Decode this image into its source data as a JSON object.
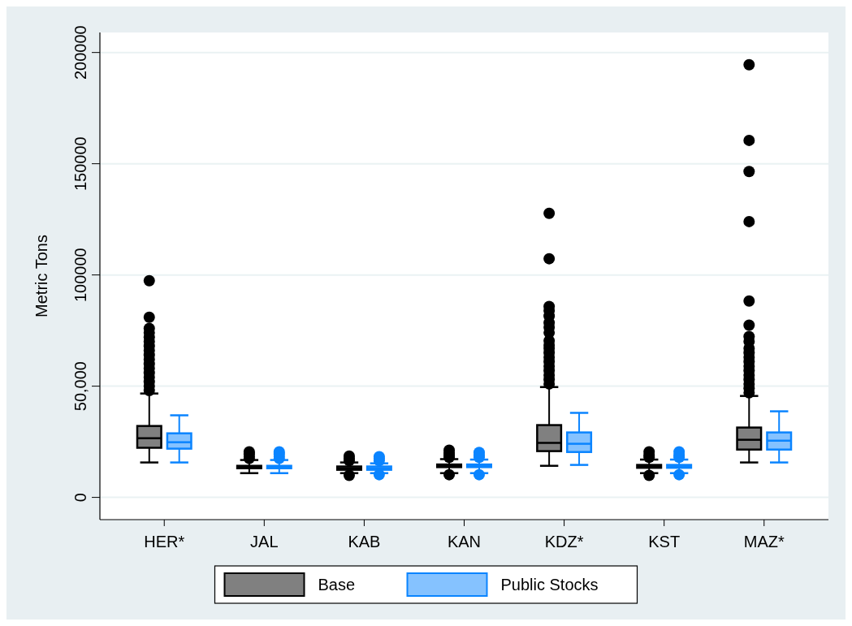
{
  "chart_data": {
    "type": "box",
    "ylabel": "Metric Tons",
    "categories": [
      "HER*",
      "JAL",
      "KAB",
      "KAN",
      "KDZ*",
      "KST",
      "MAZ*"
    ],
    "ylim": [
      -10000,
      209000
    ],
    "yticks": [
      0,
      {
        "value": 50000,
        "label": "50,000"
      },
      100000,
      150000,
      200000
    ],
    "grid": "y",
    "legend": "bottom",
    "series": [
      {
        "name": "Base",
        "color": "#000000",
        "boxes": [
          {
            "low": 15700,
            "q1": 22300,
            "median": 26600,
            "q3": 32100,
            "high": 46700,
            "outliers": [
              48000,
              50000,
              52000,
              54000,
              56000,
              58000,
              60000,
              62000,
              64000,
              66000,
              68000,
              70000,
              72000,
              74000,
              76000,
              81000,
              97400
            ]
          },
          {
            "low": 10900,
            "q1": 13100,
            "median": 13700,
            "q3": 14200,
            "high": 16800,
            "outliers": [
              17500,
              18500,
              19500,
              20500
            ]
          },
          {
            "low": 10900,
            "q1": 12400,
            "median": 13100,
            "q3": 13900,
            "high": 15700,
            "outliers": [
              9900,
              16500,
              17500,
              18600
            ]
          },
          {
            "low": 10900,
            "q1": 13600,
            "median": 14200,
            "q3": 14800,
            "high": 17200,
            "outliers": [
              10200,
              18000,
              19000,
              20000,
              21200
            ]
          },
          {
            "low": 14200,
            "q1": 20800,
            "median": 24500,
            "q3": 32500,
            "high": 49600,
            "outliers": [
              51000,
              53000,
              55000,
              57000,
              59000,
              61000,
              63000,
              65000,
              67000,
              68500,
              70400,
              74000,
              76500,
              78500,
              81500,
              83900,
              85800,
              107300,
              127700
            ]
          },
          {
            "low": 10900,
            "q1": 13300,
            "median": 13900,
            "q3": 14600,
            "high": 17000,
            "outliers": [
              9900,
              18000,
              19000,
              20500
            ]
          },
          {
            "low": 15700,
            "q1": 21500,
            "median": 25900,
            "q3": 31400,
            "high": 45600,
            "outliers": [
              47000,
              49000,
              51000,
              53000,
              55000,
              57000,
              59000,
              61000,
              63000,
              65000,
              67000,
              70000,
              72300,
              77400,
              88300,
              124000,
              146500,
              160500,
              194500
            ]
          }
        ]
      },
      {
        "name": "Public Stocks",
        "color": "#0a84ff",
        "boxes": [
          {
            "low": 15700,
            "q1": 21900,
            "median": 24800,
            "q3": 28800,
            "high": 36900
          },
          {
            "low": 10900,
            "q1": 13100,
            "median": 13700,
            "q3": 14200,
            "high": 16800,
            "outliers": [
              17500,
              18500,
              19500,
              20500
            ]
          },
          {
            "low": 10900,
            "q1": 12400,
            "median": 13100,
            "q3": 13900,
            "high": 15300,
            "outliers": [
              10200,
              16500,
              17500,
              18300
            ]
          },
          {
            "low": 10900,
            "q1": 13600,
            "median": 14200,
            "q3": 14800,
            "high": 17000,
            "outliers": [
              10200,
              18000,
              19000,
              20200
            ]
          },
          {
            "low": 14600,
            "q1": 20400,
            "median": 24100,
            "q3": 29200,
            "high": 38000
          },
          {
            "low": 10900,
            "q1": 13300,
            "median": 13900,
            "q3": 14600,
            "high": 17000,
            "outliers": [
              10200,
              18000,
              19000,
              20500
            ]
          },
          {
            "low": 15700,
            "q1": 21500,
            "median": 25500,
            "q3": 29200,
            "high": 38700
          }
        ]
      }
    ]
  }
}
